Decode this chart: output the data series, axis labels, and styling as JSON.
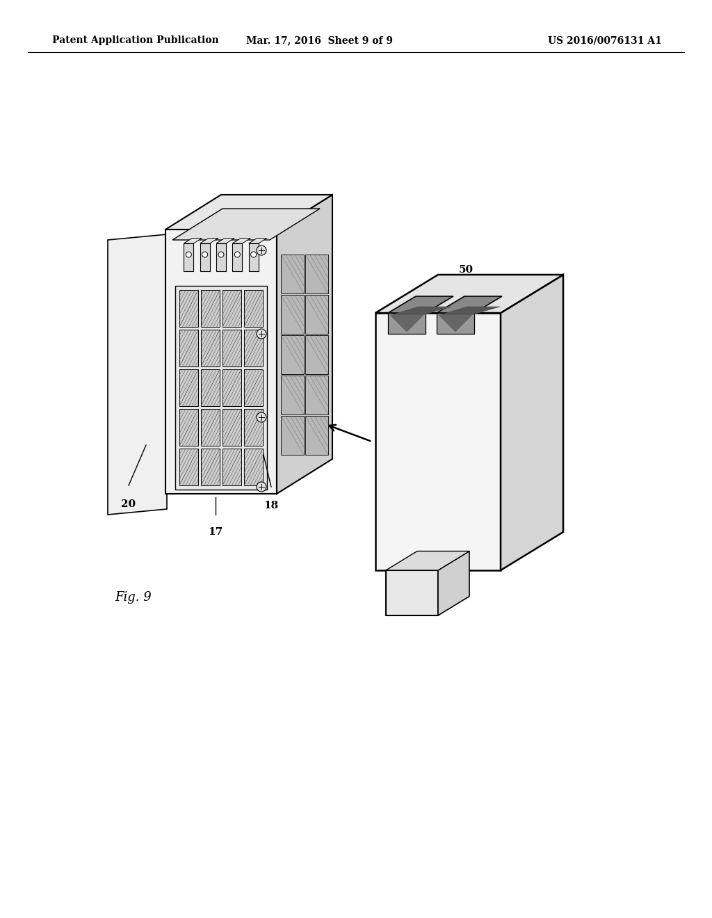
{
  "bg_color": "#ffffff",
  "header_left": "Patent Application Publication",
  "header_mid": "Mar. 17, 2016  Sheet 9 of 9",
  "header_right": "US 2016/0076131 A1",
  "fig_label": "Fig. 9",
  "label_fontsize": 11,
  "header_fontsize": 10
}
